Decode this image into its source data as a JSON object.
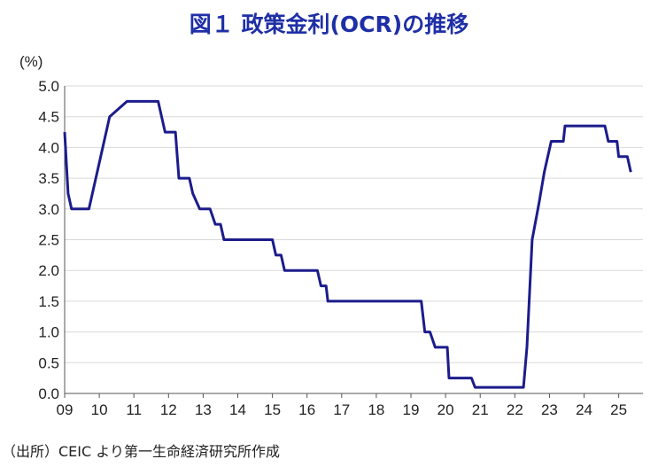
{
  "title": "図１ 政策金利(OCR)の推移",
  "source": "（出所）CEIC より第一生命経済研究所作成",
  "chart_data": {
    "type": "line",
    "ylabel": "(%)",
    "ylim": [
      0.0,
      5.0
    ],
    "yticks": [
      "0.0",
      "0.5",
      "1.0",
      "1.5",
      "2.0",
      "2.5",
      "3.0",
      "3.5",
      "4.0",
      "4.5",
      "5.0"
    ],
    "xlim": [
      2009.0,
      2025.7
    ],
    "xticks": [
      "09",
      "10",
      "11",
      "12",
      "13",
      "14",
      "15",
      "16",
      "17",
      "18",
      "19",
      "20",
      "21",
      "22",
      "23",
      "24",
      "25"
    ],
    "grid": "horizontal",
    "line_color": "#1c1c8c",
    "series": [
      {
        "values": [
          [
            2009.0,
            4.25
          ],
          [
            2009.1,
            3.25
          ],
          [
            2009.2,
            3.0
          ],
          [
            2009.7,
            3.0
          ],
          [
            2010.0,
            3.75
          ],
          [
            2010.3,
            4.5
          ],
          [
            2010.8,
            4.75
          ],
          [
            2011.7,
            4.75
          ],
          [
            2011.9,
            4.25
          ],
          [
            2012.2,
            4.25
          ],
          [
            2012.3,
            3.5
          ],
          [
            2012.6,
            3.5
          ],
          [
            2012.7,
            3.25
          ],
          [
            2012.9,
            3.0
          ],
          [
            2013.2,
            3.0
          ],
          [
            2013.35,
            2.75
          ],
          [
            2013.5,
            2.75
          ],
          [
            2013.6,
            2.5
          ],
          [
            2015.0,
            2.5
          ],
          [
            2015.1,
            2.25
          ],
          [
            2015.25,
            2.25
          ],
          [
            2015.35,
            2.0
          ],
          [
            2016.3,
            2.0
          ],
          [
            2016.4,
            1.75
          ],
          [
            2016.55,
            1.75
          ],
          [
            2016.6,
            1.5
          ],
          [
            2019.3,
            1.5
          ],
          [
            2019.4,
            1.0
          ],
          [
            2019.55,
            1.0
          ],
          [
            2019.7,
            0.75
          ],
          [
            2020.05,
            0.75
          ],
          [
            2020.1,
            0.25
          ],
          [
            2020.75,
            0.25
          ],
          [
            2020.85,
            0.1
          ],
          [
            2022.25,
            0.1
          ],
          [
            2022.35,
            0.75
          ],
          [
            2022.5,
            2.5
          ],
          [
            2022.7,
            3.1
          ],
          [
            2022.85,
            3.6
          ],
          [
            2023.05,
            4.1
          ],
          [
            2023.4,
            4.1
          ],
          [
            2023.45,
            4.35
          ],
          [
            2024.6,
            4.35
          ],
          [
            2024.7,
            4.1
          ],
          [
            2024.95,
            4.1
          ],
          [
            2025.0,
            3.85
          ],
          [
            2025.25,
            3.85
          ],
          [
            2025.35,
            3.6
          ]
        ]
      }
    ]
  }
}
